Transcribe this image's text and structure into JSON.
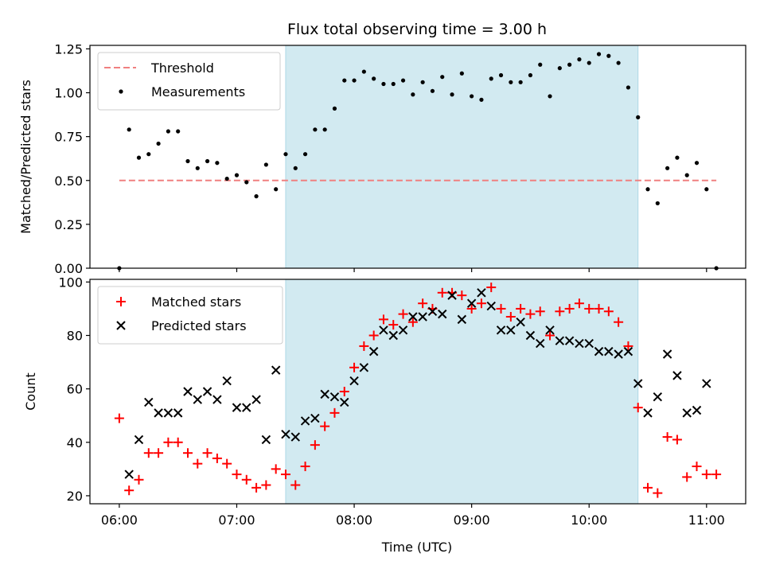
{
  "figure": {
    "title": "Flux total observing time = 3.00 h",
    "xlabel": "Time (UTC)",
    "shade_color": "#add8e6"
  },
  "chart_data": [
    {
      "type": "scatter",
      "panel": "top",
      "ylabel": "Matched/Predicted stars",
      "xlim": [
        "05:45",
        "11:20"
      ],
      "ylim": [
        0,
        1.27
      ],
      "yticks": [
        0,
        0.25,
        0.5,
        0.75,
        1.0,
        1.25
      ],
      "ytick_labels": [
        "0.00",
        "0.25",
        "0.50",
        "0.75",
        "1.00",
        "1.25"
      ],
      "shaded_span": [
        "07:25",
        "10:25"
      ],
      "grid": false,
      "legend_position": "upper-left",
      "threshold": {
        "name": "Threshold",
        "value": 0.5,
        "x_range": [
          "06:00",
          "11:05"
        ],
        "color": "#f08080"
      },
      "series": [
        {
          "name": "Measurements",
          "marker": "dot",
          "color": "#000000",
          "points": [
            [
              "06:00",
              0.0
            ],
            [
              "06:05",
              0.79
            ],
            [
              "06:10",
              0.63
            ],
            [
              "06:15",
              0.65
            ],
            [
              "06:20",
              0.71
            ],
            [
              "06:25",
              0.78
            ],
            [
              "06:30",
              0.78
            ],
            [
              "06:35",
              0.61
            ],
            [
              "06:40",
              0.57
            ],
            [
              "06:45",
              0.61
            ],
            [
              "06:50",
              0.6
            ],
            [
              "06:55",
              0.51
            ],
            [
              "07:00",
              0.53
            ],
            [
              "07:05",
              0.49
            ],
            [
              "07:10",
              0.41
            ],
            [
              "07:15",
              0.59
            ],
            [
              "07:20",
              0.45
            ],
            [
              "07:25",
              0.65
            ],
            [
              "07:30",
              0.57
            ],
            [
              "07:35",
              0.65
            ],
            [
              "07:40",
              0.79
            ],
            [
              "07:45",
              0.79
            ],
            [
              "07:50",
              0.91
            ],
            [
              "07:55",
              1.07
            ],
            [
              "08:00",
              1.07
            ],
            [
              "08:05",
              1.12
            ],
            [
              "08:10",
              1.08
            ],
            [
              "08:15",
              1.05
            ],
            [
              "08:20",
              1.05
            ],
            [
              "08:25",
              1.07
            ],
            [
              "08:30",
              0.99
            ],
            [
              "08:35",
              1.06
            ],
            [
              "08:40",
              1.01
            ],
            [
              "08:45",
              1.09
            ],
            [
              "08:50",
              0.99
            ],
            [
              "08:55",
              1.11
            ],
            [
              "09:00",
              0.98
            ],
            [
              "09:05",
              0.96
            ],
            [
              "09:10",
              1.08
            ],
            [
              "09:15",
              1.1
            ],
            [
              "09:20",
              1.06
            ],
            [
              "09:25",
              1.06
            ],
            [
              "09:30",
              1.1
            ],
            [
              "09:35",
              1.16
            ],
            [
              "09:40",
              0.98
            ],
            [
              "09:45",
              1.14
            ],
            [
              "09:50",
              1.16
            ],
            [
              "09:55",
              1.19
            ],
            [
              "10:00",
              1.17
            ],
            [
              "10:05",
              1.22
            ],
            [
              "10:10",
              1.21
            ],
            [
              "10:15",
              1.17
            ],
            [
              "10:20",
              1.03
            ],
            [
              "10:25",
              0.86
            ],
            [
              "10:30",
              0.45
            ],
            [
              "10:35",
              0.37
            ],
            [
              "10:40",
              0.57
            ],
            [
              "10:45",
              0.63
            ],
            [
              "10:50",
              0.53
            ],
            [
              "10:55",
              0.6
            ],
            [
              "11:00",
              0.45
            ],
            [
              "11:05",
              0.0
            ]
          ]
        }
      ]
    },
    {
      "type": "scatter",
      "panel": "bottom",
      "ylabel": "Count",
      "xlim": [
        "05:45",
        "11:20"
      ],
      "ylim": [
        17,
        101
      ],
      "yticks": [
        20,
        40,
        60,
        80,
        100
      ],
      "xticks": [
        "06:00",
        "07:00",
        "08:00",
        "09:00",
        "10:00",
        "11:00"
      ],
      "shaded_span": [
        "07:25",
        "10:25"
      ],
      "grid": false,
      "legend_position": "upper-left",
      "series": [
        {
          "name": "Matched stars",
          "marker": "plus",
          "color": "#ff0000",
          "points": [
            [
              "06:00",
              49
            ],
            [
              "06:05",
              22
            ],
            [
              "06:10",
              26
            ],
            [
              "06:15",
              36
            ],
            [
              "06:20",
              36
            ],
            [
              "06:25",
              40
            ],
            [
              "06:30",
              40
            ],
            [
              "06:35",
              36
            ],
            [
              "06:40",
              32
            ],
            [
              "06:45",
              36
            ],
            [
              "06:50",
              34
            ],
            [
              "06:55",
              32
            ],
            [
              "07:00",
              28
            ],
            [
              "07:05",
              26
            ],
            [
              "07:10",
              23
            ],
            [
              "07:15",
              24
            ],
            [
              "07:20",
              30
            ],
            [
              "07:25",
              28
            ],
            [
              "07:30",
              24
            ],
            [
              "07:35",
              31
            ],
            [
              "07:40",
              39
            ],
            [
              "07:45",
              46
            ],
            [
              "07:50",
              51
            ],
            [
              "07:55",
              59
            ],
            [
              "08:00",
              68
            ],
            [
              "08:05",
              76
            ],
            [
              "08:10",
              80
            ],
            [
              "08:15",
              86
            ],
            [
              "08:20",
              84
            ],
            [
              "08:25",
              88
            ],
            [
              "08:30",
              85
            ],
            [
              "08:35",
              92
            ],
            [
              "08:40",
              90
            ],
            [
              "08:45",
              96
            ],
            [
              "08:50",
              96
            ],
            [
              "08:55",
              95
            ],
            [
              "09:00",
              90
            ],
            [
              "09:05",
              92
            ],
            [
              "09:10",
              98
            ],
            [
              "09:15",
              90
            ],
            [
              "09:20",
              87
            ],
            [
              "09:25",
              90
            ],
            [
              "09:30",
              88
            ],
            [
              "09:35",
              89
            ],
            [
              "09:40",
              80
            ],
            [
              "09:45",
              89
            ],
            [
              "09:50",
              90
            ],
            [
              "09:55",
              92
            ],
            [
              "10:00",
              90
            ],
            [
              "10:05",
              90
            ],
            [
              "10:10",
              89
            ],
            [
              "10:15",
              85
            ],
            [
              "10:20",
              76
            ],
            [
              "10:25",
              53
            ],
            [
              "10:30",
              23
            ],
            [
              "10:35",
              21
            ],
            [
              "10:40",
              42
            ],
            [
              "10:45",
              41
            ],
            [
              "10:50",
              27
            ],
            [
              "10:55",
              31
            ],
            [
              "11:00",
              28
            ],
            [
              "11:05",
              28
            ]
          ]
        },
        {
          "name": "Predicted stars",
          "marker": "x",
          "color": "#000000",
          "points": [
            [
              "06:05",
              28
            ],
            [
              "06:10",
              41
            ],
            [
              "06:15",
              55
            ],
            [
              "06:20",
              51
            ],
            [
              "06:25",
              51
            ],
            [
              "06:30",
              51
            ],
            [
              "06:35",
              59
            ],
            [
              "06:40",
              56
            ],
            [
              "06:45",
              59
            ],
            [
              "06:50",
              56
            ],
            [
              "06:55",
              63
            ],
            [
              "07:00",
              53
            ],
            [
              "07:05",
              53
            ],
            [
              "07:10",
              56
            ],
            [
              "07:15",
              41
            ],
            [
              "07:20",
              67
            ],
            [
              "07:25",
              43
            ],
            [
              "07:30",
              42
            ],
            [
              "07:35",
              48
            ],
            [
              "07:40",
              49
            ],
            [
              "07:45",
              58
            ],
            [
              "07:50",
              57
            ],
            [
              "07:55",
              55
            ],
            [
              "08:00",
              63
            ],
            [
              "08:05",
              68
            ],
            [
              "08:10",
              74
            ],
            [
              "08:15",
              82
            ],
            [
              "08:20",
              80
            ],
            [
              "08:25",
              82
            ],
            [
              "08:30",
              87
            ],
            [
              "08:35",
              87
            ],
            [
              "08:40",
              89
            ],
            [
              "08:45",
              88
            ],
            [
              "08:50",
              95
            ],
            [
              "08:55",
              86
            ],
            [
              "09:00",
              92
            ],
            [
              "09:05",
              96
            ],
            [
              "09:10",
              91
            ],
            [
              "09:15",
              82
            ],
            [
              "09:20",
              82
            ],
            [
              "09:25",
              85
            ],
            [
              "09:30",
              80
            ],
            [
              "09:35",
              77
            ],
            [
              "09:40",
              82
            ],
            [
              "09:45",
              78
            ],
            [
              "09:50",
              78
            ],
            [
              "09:55",
              77
            ],
            [
              "10:00",
              77
            ],
            [
              "10:05",
              74
            ],
            [
              "10:10",
              74
            ],
            [
              "10:15",
              73
            ],
            [
              "10:20",
              74
            ],
            [
              "10:25",
              62
            ],
            [
              "10:30",
              51
            ],
            [
              "10:35",
              57
            ],
            [
              "10:40",
              73
            ],
            [
              "10:45",
              65
            ],
            [
              "10:50",
              51
            ],
            [
              "10:55",
              52
            ],
            [
              "11:00",
              62
            ]
          ]
        }
      ]
    }
  ]
}
